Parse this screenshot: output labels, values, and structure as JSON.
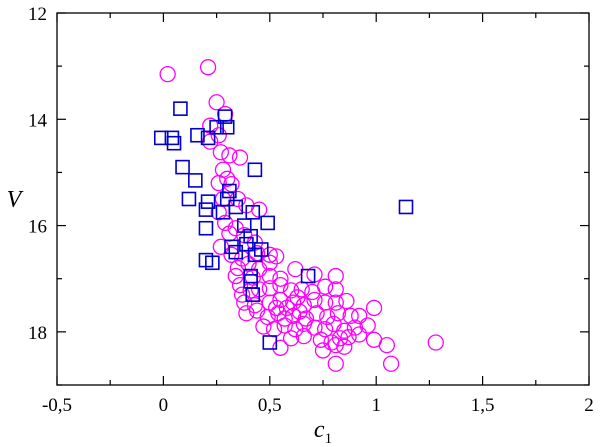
{
  "chart_data": {
    "type": "scatter",
    "title": "",
    "xlabel": "c",
    "xlabel_subscript": "1",
    "ylabel": "V",
    "xlim": [
      -0.5,
      2.0
    ],
    "ylim": [
      12,
      19
    ],
    "y_inverted": true,
    "grid": false,
    "x_ticks": [
      {
        "value": -0.5,
        "label": "-0,5"
      },
      {
        "value": 0,
        "label": "0"
      },
      {
        "value": 0.5,
        "label": "0,5"
      },
      {
        "value": 1,
        "label": "1"
      },
      {
        "value": 1.5,
        "label": "1,5"
      },
      {
        "value": 2,
        "label": "2"
      }
    ],
    "y_ticks": [
      {
        "value": 12,
        "label": "12"
      },
      {
        "value": 14,
        "label": "14"
      },
      {
        "value": 16,
        "label": "16"
      },
      {
        "value": 18,
        "label": "18"
      }
    ],
    "series": [
      {
        "marker": "circle",
        "color": "#ff00ff",
        "points": [
          [
            0.02,
            13.15
          ],
          [
            0.21,
            13.02
          ],
          [
            0.25,
            13.68
          ],
          [
            0.29,
            13.9
          ],
          [
            0.22,
            14.12
          ],
          [
            0.26,
            14.3
          ],
          [
            0.22,
            14.42
          ],
          [
            0.27,
            14.62
          ],
          [
            0.31,
            14.68
          ],
          [
            0.36,
            14.72
          ],
          [
            0.28,
            14.95
          ],
          [
            0.3,
            15.12
          ],
          [
            0.32,
            15.22
          ],
          [
            0.26,
            15.2
          ],
          [
            0.28,
            15.5
          ],
          [
            0.26,
            15.75
          ],
          [
            0.35,
            15.5
          ],
          [
            0.39,
            15.62
          ],
          [
            0.45,
            15.7
          ],
          [
            0.29,
            15.95
          ],
          [
            0.31,
            16.15
          ],
          [
            0.34,
            16.05
          ],
          [
            0.38,
            16.18
          ],
          [
            0.43,
            16.32
          ],
          [
            0.27,
            16.4
          ],
          [
            0.32,
            16.55
          ],
          [
            0.37,
            16.62
          ],
          [
            0.44,
            16.52
          ],
          [
            0.5,
            16.55
          ],
          [
            0.53,
            16.58
          ],
          [
            0.35,
            16.8
          ],
          [
            0.4,
            16.72
          ],
          [
            0.45,
            16.82
          ],
          [
            0.5,
            16.7
          ],
          [
            0.42,
            16.98
          ],
          [
            0.5,
            16.95
          ],
          [
            0.55,
            17.0
          ],
          [
            0.62,
            16.82
          ],
          [
            0.71,
            16.92
          ],
          [
            0.36,
            17.12
          ],
          [
            0.41,
            17.22
          ],
          [
            0.45,
            17.2
          ],
          [
            0.5,
            17.18
          ],
          [
            0.55,
            17.12
          ],
          [
            0.6,
            17.22
          ],
          [
            0.65,
            17.2
          ],
          [
            0.7,
            17.25
          ],
          [
            0.76,
            17.15
          ],
          [
            0.81,
            17.2
          ],
          [
            0.38,
            17.45
          ],
          [
            0.43,
            17.5
          ],
          [
            0.5,
            17.45
          ],
          [
            0.55,
            17.4
          ],
          [
            0.58,
            17.55
          ],
          [
            0.61,
            17.45
          ],
          [
            0.66,
            17.5
          ],
          [
            0.71,
            17.4
          ],
          [
            0.76,
            17.45
          ],
          [
            0.81,
            17.45
          ],
          [
            0.86,
            17.42
          ],
          [
            0.39,
            17.65
          ],
          [
            0.44,
            17.6
          ],
          [
            0.49,
            17.72
          ],
          [
            0.54,
            17.65
          ],
          [
            0.57,
            17.75
          ],
          [
            0.61,
            17.7
          ],
          [
            0.64,
            17.62
          ],
          [
            0.67,
            17.75
          ],
          [
            0.72,
            17.65
          ],
          [
            0.77,
            17.72
          ],
          [
            0.82,
            17.65
          ],
          [
            0.88,
            17.7
          ],
          [
            0.47,
            17.9
          ],
          [
            0.52,
            17.95
          ],
          [
            0.57,
            17.88
          ],
          [
            0.62,
            17.95
          ],
          [
            0.66,
            17.85
          ],
          [
            0.71,
            17.92
          ],
          [
            0.76,
            17.95
          ],
          [
            0.8,
            17.85
          ],
          [
            0.85,
            17.98
          ],
          [
            0.9,
            17.92
          ],
          [
            0.96,
            17.88
          ],
          [
            0.6,
            18.12
          ],
          [
            0.66,
            18.08
          ],
          [
            0.74,
            18.15
          ],
          [
            0.79,
            18.2
          ],
          [
            0.83,
            18.12
          ],
          [
            0.87,
            18.1
          ],
          [
            0.92,
            18.05
          ],
          [
            0.99,
            18.15
          ],
          [
            1.05,
            18.25
          ],
          [
            0.55,
            18.3
          ],
          [
            0.75,
            18.35
          ],
          [
            0.81,
            18.25
          ],
          [
            0.85,
            18.28
          ],
          [
            0.81,
            18.6
          ],
          [
            1.07,
            18.6
          ],
          [
            1.28,
            18.2
          ],
          [
            0.99,
            17.55
          ],
          [
            0.81,
            16.95
          ],
          [
            0.92,
            17.7
          ],
          [
            0.34,
            16.95
          ],
          [
            0.37,
            17.3
          ],
          [
            0.53,
            17.55
          ],
          [
            0.63,
            17.35
          ]
        ]
      },
      {
        "marker": "square",
        "color": "#0000cc",
        "points": [
          [
            0.08,
            13.8
          ],
          [
            0.29,
            13.95
          ],
          [
            0.25,
            14.15
          ],
          [
            0.3,
            14.15
          ],
          [
            -0.01,
            14.35
          ],
          [
            0.04,
            14.35
          ],
          [
            0.05,
            14.45
          ],
          [
            0.16,
            14.3
          ],
          [
            0.21,
            14.35
          ],
          [
            0.09,
            14.9
          ],
          [
            0.15,
            15.15
          ],
          [
            0.43,
            14.95
          ],
          [
            0.12,
            15.5
          ],
          [
            0.21,
            15.55
          ],
          [
            0.31,
            15.35
          ],
          [
            0.3,
            15.5
          ],
          [
            0.2,
            15.7
          ],
          [
            0.28,
            15.75
          ],
          [
            0.34,
            15.65
          ],
          [
            0.42,
            15.75
          ],
          [
            0.38,
            16.0
          ],
          [
            0.2,
            16.05
          ],
          [
            0.49,
            15.95
          ],
          [
            0.41,
            16.2
          ],
          [
            0.39,
            16.35
          ],
          [
            0.32,
            16.4
          ],
          [
            0.34,
            16.5
          ],
          [
            0.46,
            16.45
          ],
          [
            0.43,
            16.55
          ],
          [
            0.2,
            16.65
          ],
          [
            0.23,
            16.7
          ],
          [
            0.41,
            16.95
          ],
          [
            0.68,
            16.95
          ],
          [
            0.41,
            17.05
          ],
          [
            0.42,
            17.3
          ],
          [
            0.5,
            18.2
          ],
          [
            1.14,
            15.65
          ]
        ]
      }
    ]
  }
}
